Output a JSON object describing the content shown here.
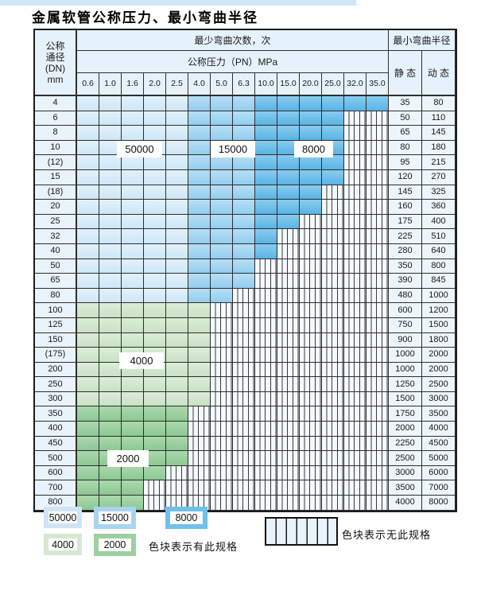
{
  "page": {
    "title": "金属软管公称压力、最小弯曲半径"
  },
  "table": {
    "header": {
      "dn_lines": [
        "公称",
        "通径",
        "(DN)",
        "mm"
      ],
      "bend_cycles": "最少弯曲次数，次",
      "pressure_title": "公称压力（PN）MPa",
      "min_radius": "最小弯曲半径",
      "static": "静 态",
      "dynamic": "动 态",
      "pressures": [
        "0.6",
        "1.0",
        "1.6",
        "2.0",
        "2.5",
        "4.0",
        "5.0",
        "6.3",
        "10.0",
        "15.0",
        "20.0",
        "25.0",
        "32.0",
        "35.0"
      ]
    },
    "region_labels": {
      "r50000": "50000",
      "r15000": "15000",
      "r8000": "8000",
      "r4000": "4000",
      "r2000": "2000"
    },
    "rows": [
      {
        "dn": "4",
        "zone": "blue",
        "max_col": 13,
        "static": "35",
        "dynamic": "80"
      },
      {
        "dn": "6",
        "zone": "blue",
        "max_col": 11,
        "static": "50",
        "dynamic": "110"
      },
      {
        "dn": "8",
        "zone": "blue",
        "max_col": 11,
        "static": "65",
        "dynamic": "145"
      },
      {
        "dn": "10",
        "zone": "blue",
        "max_col": 11,
        "static": "80",
        "dynamic": "180"
      },
      {
        "dn": "(12)",
        "zone": "blue",
        "max_col": 11,
        "static": "95",
        "dynamic": "215"
      },
      {
        "dn": "15",
        "zone": "blue",
        "max_col": 11,
        "static": "120",
        "dynamic": "270"
      },
      {
        "dn": "(18)",
        "zone": "blue",
        "max_col": 10,
        "static": "145",
        "dynamic": "325"
      },
      {
        "dn": "20",
        "zone": "blue",
        "max_col": 10,
        "static": "160",
        "dynamic": "360"
      },
      {
        "dn": "25",
        "zone": "blue",
        "max_col": 9,
        "static": "175",
        "dynamic": "400"
      },
      {
        "dn": "32",
        "zone": "blue",
        "max_col": 8,
        "static": "225",
        "dynamic": "510"
      },
      {
        "dn": "40",
        "zone": "blue",
        "max_col": 8,
        "static": "280",
        "dynamic": "640"
      },
      {
        "dn": "50",
        "zone": "blue",
        "max_col": 7,
        "static": "350",
        "dynamic": "800"
      },
      {
        "dn": "65",
        "zone": "blue",
        "max_col": 7,
        "static": "390",
        "dynamic": "845"
      },
      {
        "dn": "80",
        "zone": "blue",
        "max_col": 6,
        "static": "480",
        "dynamic": "1000"
      },
      {
        "dn": "100",
        "zone": "green4000",
        "max_col": 5,
        "static": "600",
        "dynamic": "1200"
      },
      {
        "dn": "125",
        "zone": "green4000",
        "max_col": 5,
        "static": "750",
        "dynamic": "1500"
      },
      {
        "dn": "150",
        "zone": "green4000",
        "max_col": 5,
        "static": "900",
        "dynamic": "1800"
      },
      {
        "dn": "(175)",
        "zone": "green4000",
        "max_col": 5,
        "static": "1000",
        "dynamic": "2000"
      },
      {
        "dn": "200",
        "zone": "green4000",
        "max_col": 5,
        "static": "1000",
        "dynamic": "2000"
      },
      {
        "dn": "250",
        "zone": "green4000",
        "max_col": 5,
        "static": "1250",
        "dynamic": "2500"
      },
      {
        "dn": "300",
        "zone": "green4000",
        "max_col": 5,
        "static": "1500",
        "dynamic": "3000"
      },
      {
        "dn": "350",
        "zone": "green2000",
        "max_col": 4,
        "static": "1750",
        "dynamic": "3500"
      },
      {
        "dn": "400",
        "zone": "green2000",
        "max_col": 4,
        "static": "2000",
        "dynamic": "4000"
      },
      {
        "dn": "450",
        "zone": "green2000",
        "max_col": 4,
        "static": "2250",
        "dynamic": "4500"
      },
      {
        "dn": "500",
        "zone": "green2000",
        "max_col": 4,
        "static": "2500",
        "dynamic": "5000"
      },
      {
        "dn": "600",
        "zone": "green2000",
        "max_col": 3,
        "static": "3000",
        "dynamic": "6000"
      },
      {
        "dn": "700",
        "zone": "green2000",
        "max_col": 2,
        "static": "3500",
        "dynamic": "7000"
      },
      {
        "dn": "800",
        "zone": "green2000",
        "max_col": 2,
        "static": "4000",
        "dynamic": "8000"
      }
    ]
  },
  "legend": {
    "items": [
      {
        "label": "50000",
        "color": "#cfe4f6"
      },
      {
        "label": "15000",
        "color": "#a8d4f0"
      },
      {
        "label": "8000",
        "color": "#6fc0ea"
      },
      {
        "label": "4000",
        "color": "#d5e9d1"
      },
      {
        "label": "2000",
        "color": "#9bd0a0"
      }
    ],
    "has_spec_text": "色块表示有此规格",
    "no_spec_text": "色块表示无此规格"
  },
  "colors": {
    "cycles_50000": "#cde7f7",
    "cycles_15000": "#92cef0",
    "cycles_8000": "#58b4e6",
    "cycles_4000": "#c8e2c4",
    "cycles_2000": "#8cc892",
    "header_bg": "#e6f2fb",
    "grid_line": "#2e2e2e"
  }
}
